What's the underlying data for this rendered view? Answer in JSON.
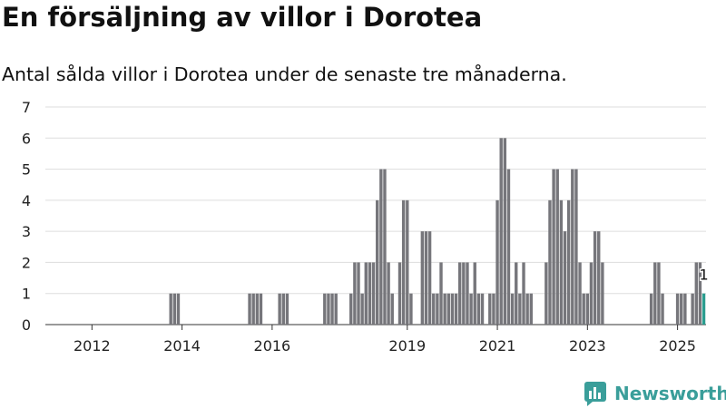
{
  "header": {
    "title": "En försäljning av villor i Dorotea",
    "subtitle": "Antal sålda villor i Dorotea under de senaste tre månaderna."
  },
  "brand": {
    "name": "Newsworthy",
    "logo_icon": "bar-chart-logo-icon",
    "color": "#3a9e9a"
  },
  "chart_data": {
    "type": "bar",
    "x_unit": "month",
    "x_start": "2011-01",
    "ylim": [
      0,
      7
    ],
    "y_ticks": [
      0,
      1,
      2,
      3,
      4,
      5,
      6,
      7
    ],
    "x_ticks": [
      "2012",
      "2014",
      "2016",
      "2019",
      "2021",
      "2023",
      "2025"
    ],
    "grid": true,
    "bar_color": "#76767b",
    "highlight_color": "#2a9d8f",
    "highlight_label": "1",
    "values": [
      0,
      0,
      0,
      0,
      0,
      0,
      0,
      0,
      0,
      0,
      0,
      0,
      0,
      0,
      0,
      0,
      0,
      0,
      0,
      0,
      0,
      0,
      0,
      0,
      0,
      0,
      0,
      0,
      0,
      0,
      0,
      0,
      0,
      1,
      1,
      1,
      0,
      0,
      0,
      0,
      0,
      0,
      0,
      0,
      0,
      0,
      0,
      0,
      0,
      0,
      0,
      0,
      0,
      0,
      1,
      1,
      1,
      1,
      0,
      0,
      0,
      0,
      1,
      1,
      1,
      0,
      0,
      0,
      0,
      0,
      0,
      0,
      0,
      0,
      1,
      1,
      1,
      1,
      0,
      0,
      0,
      1,
      2,
      2,
      1,
      2,
      2,
      2,
      4,
      5,
      5,
      2,
      1,
      0,
      2,
      4,
      4,
      1,
      0,
      0,
      3,
      3,
      3,
      1,
      1,
      2,
      1,
      1,
      1,
      1,
      2,
      2,
      2,
      1,
      2,
      1,
      1,
      0,
      1,
      1,
      4,
      6,
      6,
      5,
      1,
      2,
      1,
      2,
      1,
      1,
      0,
      0,
      0,
      2,
      4,
      5,
      5,
      4,
      3,
      4,
      5,
      5,
      2,
      1,
      1,
      2,
      3,
      3,
      2,
      0,
      0,
      0,
      0,
      0,
      0,
      0,
      0,
      0,
      0,
      0,
      0,
      1,
      2,
      2,
      1,
      0,
      0,
      0,
      1,
      1,
      1,
      0,
      1,
      2,
      2,
      1
    ]
  }
}
